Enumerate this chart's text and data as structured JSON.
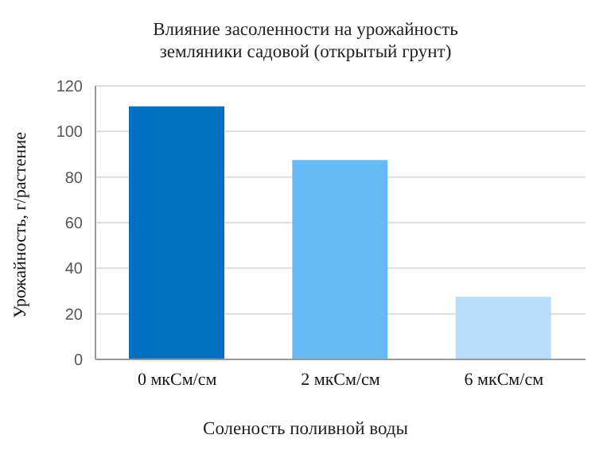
{
  "chart_data": {
    "type": "bar",
    "title": "Влияние засоленности на урожайность земляники садовой (открытый грунт)",
    "xlabel": "Соленость поливной воды",
    "ylabel": "Урожайность, г/растение",
    "categories": [
      "0 мкСм/см",
      "2 мкСм/см",
      "6 мкСм/см"
    ],
    "values": [
      111,
      87.5,
      27.5
    ],
    "colors": [
      "#0070c0",
      "#66bbf7",
      "#b9def9"
    ],
    "ylim": [
      0,
      120
    ],
    "yticks": [
      0,
      20,
      40,
      60,
      80,
      100,
      120
    ],
    "grid": "y"
  }
}
